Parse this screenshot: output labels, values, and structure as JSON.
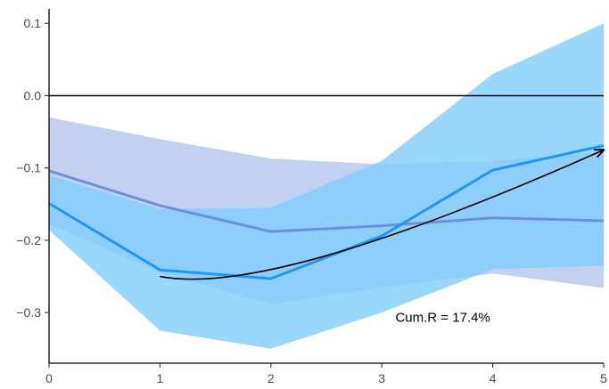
{
  "chart_data": {
    "type": "line",
    "x": [
      0,
      1,
      2,
      3,
      4,
      5
    ],
    "xlim": [
      0,
      5
    ],
    "ylim": [
      -0.37,
      0.12
    ],
    "xticks": [
      "0",
      "1",
      "2",
      "3",
      "4",
      "5"
    ],
    "yticks": [
      "0.1",
      "0.0",
      "−0.1",
      "−0.2",
      "−0.3"
    ],
    "ytick_values": [
      0.1,
      0.0,
      -0.1,
      -0.2,
      -0.3
    ],
    "grid": false,
    "reference_line": 0.0,
    "series": [
      {
        "values": [
          -0.104,
          -0.152,
          -0.188,
          -0.18,
          -0.169,
          -0.173
        ],
        "lower": [
          -0.177,
          -0.245,
          -0.288,
          -0.265,
          -0.246,
          -0.266
        ],
        "upper": [
          -0.03,
          -0.06,
          -0.087,
          -0.095,
          -0.09,
          -0.078
        ],
        "line_color": "#6f8fde",
        "band_color": "#b9c8f0"
      },
      {
        "values": [
          -0.149,
          -0.241,
          -0.253,
          -0.194,
          -0.103,
          -0.069
        ],
        "lower": [
          -0.186,
          -0.325,
          -0.35,
          -0.3,
          -0.24,
          -0.235
        ],
        "upper": [
          -0.11,
          -0.157,
          -0.155,
          -0.09,
          0.03,
          0.1
        ],
        "line_color": "#2196f3",
        "band_color": "#81cdfc"
      }
    ],
    "annotation": {
      "text": "Cum.R = 17.4%",
      "arrow_from": [
        1,
        -0.25
      ],
      "arrow_control": [
        2,
        -0.28
      ],
      "arrow_to": [
        5,
        -0.075
      ],
      "label_at": [
        3.55,
        -0.313
      ]
    }
  }
}
